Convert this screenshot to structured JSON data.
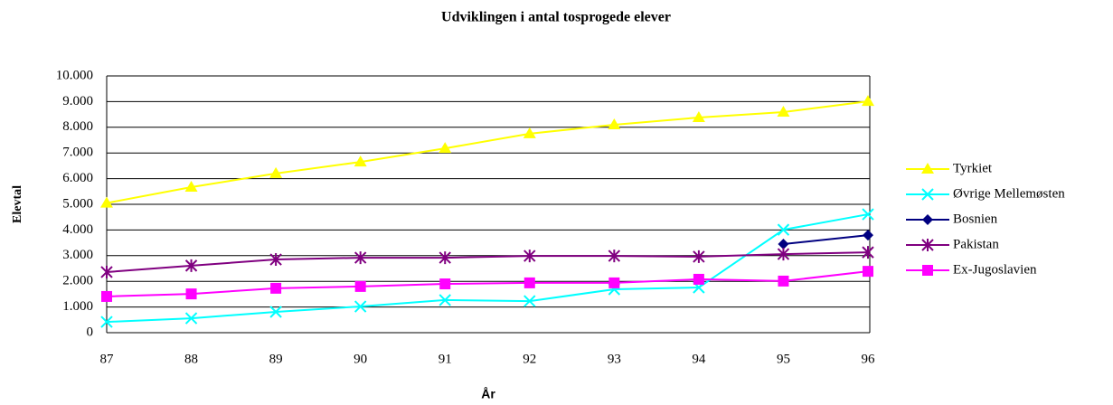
{
  "chart_data": {
    "type": "line",
    "title": "Udviklingen i antal tosprogede elever",
    "x_label": "År",
    "y_label": "Elevtal",
    "categories": [
      "87",
      "88",
      "89",
      "90",
      "91",
      "92",
      "93",
      "94",
      "95",
      "96"
    ],
    "series": [
      {
        "name": "Tyrkiet",
        "color": "#ffff00",
        "marker": "triangle",
        "values": [
          5050,
          5670,
          6200,
          6650,
          7180,
          7750,
          8100,
          8380,
          8590,
          9010
        ]
      },
      {
        "name": "Øvrige Mellemøsten",
        "color": "#00ffff",
        "marker": "x",
        "values": [
          420,
          560,
          810,
          1020,
          1270,
          1230,
          1690,
          1760,
          4010,
          4610
        ]
      },
      {
        "name": "Bosnien",
        "color": "#000080",
        "marker": "diamond",
        "values": [
          null,
          null,
          null,
          null,
          null,
          null,
          null,
          null,
          3450,
          3800
        ]
      },
      {
        "name": "Pakistan",
        "color": "#800080",
        "marker": "asterisk",
        "values": [
          2360,
          2610,
          2850,
          2920,
          2920,
          2990,
          2990,
          2960,
          3060,
          3130
        ]
      },
      {
        "name": "Ex-Jugoslavien",
        "color": "#ff00ff",
        "marker": "square",
        "values": [
          1410,
          1510,
          1730,
          1800,
          1900,
          1940,
          1940,
          2080,
          2010,
          2390
        ]
      }
    ],
    "ylim": [
      0,
      10000
    ],
    "yticks": [
      0,
      {
        "value": 1000,
        "label": "1.000"
      },
      {
        "value": 2000,
        "label": "2.000"
      },
      {
        "value": 3000,
        "label": "3.000"
      },
      {
        "value": 4000,
        "label": "4.000"
      },
      {
        "value": 5000,
        "label": "5.000"
      },
      {
        "value": 6000,
        "label": "6.000"
      },
      {
        "value": 7000,
        "label": "7.000"
      },
      {
        "value": 8000,
        "label": "8.000"
      },
      {
        "value": 9000,
        "label": "9.000"
      },
      {
        "value": 10000,
        "label": "10.000"
      }
    ],
    "grid": true,
    "legend": "right"
  }
}
